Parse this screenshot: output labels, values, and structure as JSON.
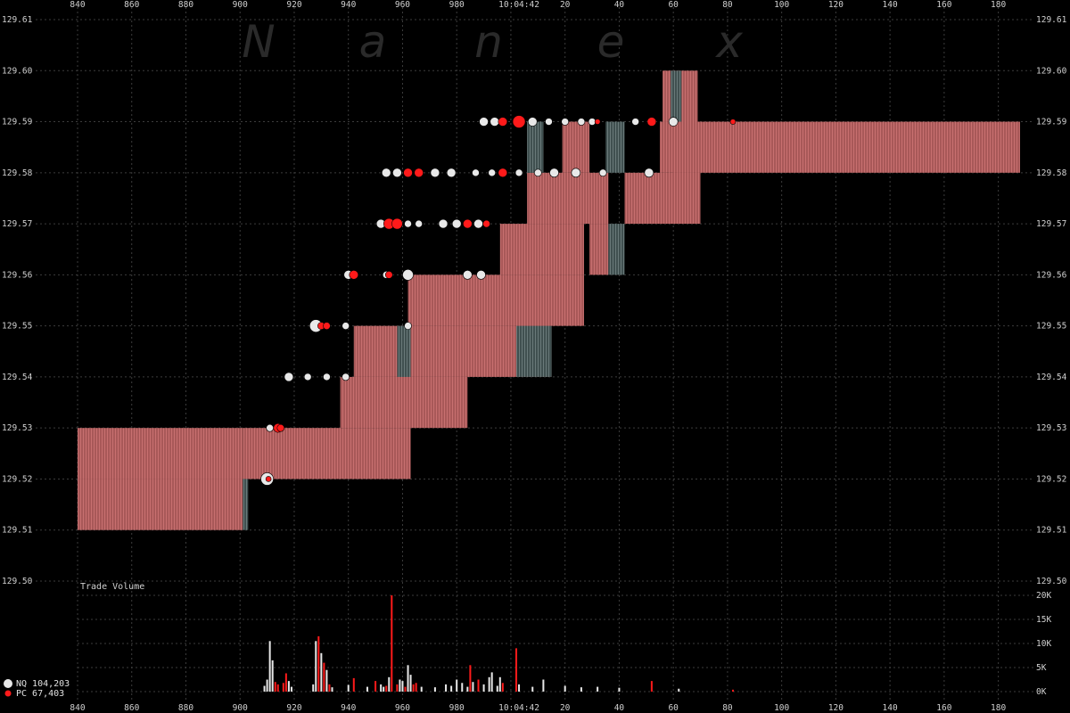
{
  "chart_data": {
    "type": "scatter",
    "watermark": [
      "N",
      "a",
      "n",
      "e",
      "x"
    ],
    "center_time_label": "10:04:42",
    "x_tick_labels": [
      "840",
      "860",
      "880",
      "900",
      "920",
      "940",
      "960",
      "980",
      "20",
      "40",
      "60",
      "80",
      "100",
      "120",
      "140",
      "160",
      "180"
    ],
    "y_tick_labels": [
      "129.61",
      "129.60",
      "129.59",
      "129.58",
      "129.57",
      "129.56",
      "129.55",
      "129.54",
      "129.53",
      "129.52",
      "129.51",
      "129.50"
    ],
    "ylim": [
      129.5,
      129.61
    ],
    "volume_label": "Trade Volume",
    "volume_tick_labels": [
      "20K",
      "15K",
      "10K",
      "5K",
      "0K"
    ],
    "volume_ylim": [
      0,
      20000
    ],
    "colors": {
      "background": "#000000",
      "band": "#a85858",
      "band_stripe": "#c06a6a",
      "band_dark": "#506060",
      "nq": "#e8e8e8",
      "pc": "#ff1a1a",
      "grid": "#3c3c3c"
    },
    "series": [
      {
        "name": "NQ",
        "total": "104,203",
        "color": "#e8e8e8"
      },
      {
        "name": "PC",
        "total": "67,403",
        "color": "#ff1a1a"
      }
    ],
    "quote_bands": [
      {
        "t0": 840,
        "t1": 901,
        "lo": 129.51,
        "hi": 129.52
      },
      {
        "t0": 840,
        "t1": 901,
        "lo": 129.52,
        "hi": 129.53
      },
      {
        "t0": 901,
        "t1": 963,
        "lo": 129.52,
        "hi": 129.53
      },
      {
        "t0": 937,
        "t1": 984,
        "lo": 129.53,
        "hi": 129.54
      },
      {
        "t0": 942,
        "t1": 1015,
        "lo": 129.54,
        "hi": 129.55
      },
      {
        "t0": 962,
        "t1": 1027,
        "lo": 129.55,
        "hi": 129.56
      },
      {
        "t0": 996,
        "t1": 1027,
        "lo": 129.56,
        "hi": 129.57
      },
      {
        "t0": 1029,
        "t1": 1036,
        "lo": 129.56,
        "hi": 129.57
      },
      {
        "t0": 1006,
        "t1": 1036,
        "lo": 129.57,
        "hi": 129.58
      },
      {
        "t0": 1042,
        "t1": 1070,
        "lo": 129.57,
        "hi": 129.58
      },
      {
        "t0": 1019,
        "t1": 1029,
        "lo": 129.58,
        "hi": 129.59
      },
      {
        "t0": 1055,
        "t1": 1070,
        "lo": 129.58,
        "hi": 129.59
      },
      {
        "t0": 1060,
        "t1": 1188,
        "lo": 129.58,
        "hi": 129.59
      },
      {
        "t0": 1056,
        "t1": 1069,
        "lo": 129.59,
        "hi": 129.6
      }
    ],
    "dark_bands": [
      {
        "t0": 901,
        "t1": 903,
        "lo": 129.51,
        "hi": 129.52
      },
      {
        "t0": 958,
        "t1": 963,
        "lo": 129.54,
        "hi": 129.55
      },
      {
        "t0": 1002,
        "t1": 1015,
        "lo": 129.54,
        "hi": 129.55
      },
      {
        "t0": 1036,
        "t1": 1042,
        "lo": 129.56,
        "hi": 129.57
      },
      {
        "t0": 1035,
        "t1": 1042,
        "lo": 129.58,
        "hi": 129.59
      },
      {
        "t0": 1006,
        "t1": 1012,
        "lo": 129.58,
        "hi": 129.59
      },
      {
        "t0": 1059,
        "t1": 1063,
        "lo": 129.59,
        "hi": 129.6
      }
    ],
    "trades": [
      {
        "t": 910,
        "p": 129.52,
        "s": "NQ",
        "r": 7
      },
      {
        "t": 910.5,
        "p": 129.52,
        "s": "PC",
        "r": 3
      },
      {
        "t": 911,
        "p": 129.53,
        "s": "NQ",
        "r": 4
      },
      {
        "t": 914,
        "p": 129.53,
        "s": "PC",
        "r": 5
      },
      {
        "t": 915,
        "p": 129.53,
        "s": "PC",
        "r": 4
      },
      {
        "t": 918,
        "p": 129.54,
        "s": "NQ",
        "r": 5
      },
      {
        "t": 925,
        "p": 129.54,
        "s": "NQ",
        "r": 4
      },
      {
        "t": 932,
        "p": 129.54,
        "s": "NQ",
        "r": 4
      },
      {
        "t": 939,
        "p": 129.54,
        "s": "NQ",
        "r": 4
      },
      {
        "t": 928,
        "p": 129.55,
        "s": "NQ",
        "r": 7
      },
      {
        "t": 930,
        "p": 129.55,
        "s": "PC",
        "r": 4
      },
      {
        "t": 932,
        "p": 129.55,
        "s": "PC",
        "r": 4
      },
      {
        "t": 939,
        "p": 129.55,
        "s": "NQ",
        "r": 4
      },
      {
        "t": 962,
        "p": 129.55,
        "s": "NQ",
        "r": 4
      },
      {
        "t": 940,
        "p": 129.56,
        "s": "NQ",
        "r": 5
      },
      {
        "t": 942,
        "p": 129.56,
        "s": "PC",
        "r": 5
      },
      {
        "t": 954,
        "p": 129.56,
        "s": "NQ",
        "r": 4
      },
      {
        "t": 955,
        "p": 129.56,
        "s": "PC",
        "r": 4
      },
      {
        "t": 962,
        "p": 129.56,
        "s": "NQ",
        "r": 6
      },
      {
        "t": 984,
        "p": 129.56,
        "s": "NQ",
        "r": 5
      },
      {
        "t": 989,
        "p": 129.56,
        "s": "NQ",
        "r": 5
      },
      {
        "t": 952,
        "p": 129.57,
        "s": "NQ",
        "r": 5
      },
      {
        "t": 955,
        "p": 129.57,
        "s": "PC",
        "r": 6
      },
      {
        "t": 958,
        "p": 129.57,
        "s": "PC",
        "r": 6
      },
      {
        "t": 962,
        "p": 129.57,
        "s": "NQ",
        "r": 4
      },
      {
        "t": 966,
        "p": 129.57,
        "s": "NQ",
        "r": 4
      },
      {
        "t": 975,
        "p": 129.57,
        "s": "NQ",
        "r": 5
      },
      {
        "t": 980,
        "p": 129.57,
        "s": "NQ",
        "r": 5
      },
      {
        "t": 984,
        "p": 129.57,
        "s": "PC",
        "r": 5
      },
      {
        "t": 988,
        "p": 129.57,
        "s": "NQ",
        "r": 5
      },
      {
        "t": 991,
        "p": 129.57,
        "s": "PC",
        "r": 4
      },
      {
        "t": 954,
        "p": 129.58,
        "s": "NQ",
        "r": 5
      },
      {
        "t": 958,
        "p": 129.58,
        "s": "NQ",
        "r": 5
      },
      {
        "t": 962,
        "p": 129.58,
        "s": "PC",
        "r": 5
      },
      {
        "t": 966,
        "p": 129.58,
        "s": "PC",
        "r": 5
      },
      {
        "t": 972,
        "p": 129.58,
        "s": "NQ",
        "r": 5
      },
      {
        "t": 978,
        "p": 129.58,
        "s": "NQ",
        "r": 5
      },
      {
        "t": 987,
        "p": 129.58,
        "s": "NQ",
        "r": 4
      },
      {
        "t": 993,
        "p": 129.58,
        "s": "NQ",
        "r": 4
      },
      {
        "t": 997,
        "p": 129.58,
        "s": "PC",
        "r": 5
      },
      {
        "t": 1003,
        "p": 129.58,
        "s": "NQ",
        "r": 4
      },
      {
        "t": 1010,
        "p": 129.58,
        "s": "NQ",
        "r": 4
      },
      {
        "t": 1016,
        "p": 129.58,
        "s": "NQ",
        "r": 5
      },
      {
        "t": 1024,
        "p": 129.58,
        "s": "NQ",
        "r": 5
      },
      {
        "t": 1034,
        "p": 129.58,
        "s": "NQ",
        "r": 4
      },
      {
        "t": 1051,
        "p": 129.58,
        "s": "NQ",
        "r": 5
      },
      {
        "t": 990,
        "p": 129.59,
        "s": "NQ",
        "r": 5
      },
      {
        "t": 994,
        "p": 129.59,
        "s": "NQ",
        "r": 5
      },
      {
        "t": 997,
        "p": 129.59,
        "s": "PC",
        "r": 5
      },
      {
        "t": 1003,
        "p": 129.59,
        "s": "PC",
        "r": 7
      },
      {
        "t": 1008,
        "p": 129.59,
        "s": "NQ",
        "r": 5
      },
      {
        "t": 1014,
        "p": 129.59,
        "s": "NQ",
        "r": 4
      },
      {
        "t": 1020,
        "p": 129.59,
        "s": "NQ",
        "r": 4
      },
      {
        "t": 1026,
        "p": 129.59,
        "s": "NQ",
        "r": 4
      },
      {
        "t": 1030,
        "p": 129.59,
        "s": "NQ",
        "r": 4
      },
      {
        "t": 1032,
        "p": 129.59,
        "s": "PC",
        "r": 3
      },
      {
        "t": 1046,
        "p": 129.59,
        "s": "NQ",
        "r": 4
      },
      {
        "t": 1052,
        "p": 129.59,
        "s": "PC",
        "r": 5
      },
      {
        "t": 1060,
        "p": 129.59,
        "s": "NQ",
        "r": 5
      },
      {
        "t": 1082,
        "p": 129.59,
        "s": "PC",
        "r": 3
      }
    ],
    "volume": [
      {
        "t": 909,
        "v": 1200,
        "s": "NQ"
      },
      {
        "t": 910,
        "v": 2500,
        "s": "NQ"
      },
      {
        "t": 911,
        "v": 10500,
        "s": "NQ"
      },
      {
        "t": 912,
        "v": 6500,
        "s": "NQ"
      },
      {
        "t": 913,
        "v": 2000,
        "s": "PC"
      },
      {
        "t": 914,
        "v": 1500,
        "s": "PC"
      },
      {
        "t": 916,
        "v": 1800,
        "s": "PC"
      },
      {
        "t": 917,
        "v": 3800,
        "s": "PC"
      },
      {
        "t": 918,
        "v": 2200,
        "s": "NQ"
      },
      {
        "t": 919,
        "v": 1000,
        "s": "NQ"
      },
      {
        "t": 927,
        "v": 1500,
        "s": "NQ"
      },
      {
        "t": 928,
        "v": 10500,
        "s": "NQ"
      },
      {
        "t": 929,
        "v": 11500,
        "s": "PC"
      },
      {
        "t": 930,
        "v": 8000,
        "s": "NQ"
      },
      {
        "t": 931,
        "v": 6000,
        "s": "PC"
      },
      {
        "t": 932,
        "v": 4500,
        "s": "NQ"
      },
      {
        "t": 933,
        "v": 1500,
        "s": "PC"
      },
      {
        "t": 934,
        "v": 900,
        "s": "NQ"
      },
      {
        "t": 940,
        "v": 1400,
        "s": "NQ"
      },
      {
        "t": 942,
        "v": 2800,
        "s": "PC"
      },
      {
        "t": 947,
        "v": 1000,
        "s": "NQ"
      },
      {
        "t": 950,
        "v": 2200,
        "s": "PC"
      },
      {
        "t": 952,
        "v": 1500,
        "s": "NQ"
      },
      {
        "t": 953,
        "v": 1000,
        "s": "NQ"
      },
      {
        "t": 954,
        "v": 1200,
        "s": "PC"
      },
      {
        "t": 955,
        "v": 3000,
        "s": "NQ"
      },
      {
        "t": 956,
        "v": 20000,
        "s": "PC"
      },
      {
        "t": 958,
        "v": 1500,
        "s": "PC"
      },
      {
        "t": 959,
        "v": 2500,
        "s": "NQ"
      },
      {
        "t": 960,
        "v": 2200,
        "s": "NQ"
      },
      {
        "t": 961,
        "v": 1000,
        "s": "PC"
      },
      {
        "t": 962,
        "v": 5500,
        "s": "NQ"
      },
      {
        "t": 963,
        "v": 3500,
        "s": "NQ"
      },
      {
        "t": 964,
        "v": 1500,
        "s": "PC"
      },
      {
        "t": 965,
        "v": 1800,
        "s": "PC"
      },
      {
        "t": 967,
        "v": 1000,
        "s": "NQ"
      },
      {
        "t": 972,
        "v": 900,
        "s": "NQ"
      },
      {
        "t": 976,
        "v": 1500,
        "s": "NQ"
      },
      {
        "t": 978,
        "v": 1200,
        "s": "NQ"
      },
      {
        "t": 980,
        "v": 2500,
        "s": "NQ"
      },
      {
        "t": 982,
        "v": 1800,
        "s": "NQ"
      },
      {
        "t": 984,
        "v": 1000,
        "s": "NQ"
      },
      {
        "t": 985,
        "v": 5500,
        "s": "PC"
      },
      {
        "t": 986,
        "v": 2000,
        "s": "NQ"
      },
      {
        "t": 988,
        "v": 2500,
        "s": "PC"
      },
      {
        "t": 990,
        "v": 1500,
        "s": "NQ"
      },
      {
        "t": 992,
        "v": 3000,
        "s": "NQ"
      },
      {
        "t": 993,
        "v": 4000,
        "s": "NQ"
      },
      {
        "t": 995,
        "v": 1200,
        "s": "NQ"
      },
      {
        "t": 996,
        "v": 3000,
        "s": "NQ"
      },
      {
        "t": 997,
        "v": 1800,
        "s": "PC"
      },
      {
        "t": 1002,
        "v": 9000,
        "s": "PC"
      },
      {
        "t": 1003,
        "v": 1500,
        "s": "NQ"
      },
      {
        "t": 1008,
        "v": 1000,
        "s": "NQ"
      },
      {
        "t": 1012,
        "v": 2500,
        "s": "NQ"
      },
      {
        "t": 1020,
        "v": 1200,
        "s": "NQ"
      },
      {
        "t": 1026,
        "v": 900,
        "s": "NQ"
      },
      {
        "t": 1032,
        "v": 1000,
        "s": "NQ"
      },
      {
        "t": 1040,
        "v": 800,
        "s": "NQ"
      },
      {
        "t": 1052,
        "v": 2200,
        "s": "PC"
      },
      {
        "t": 1062,
        "v": 600,
        "s": "NQ"
      },
      {
        "t": 1082,
        "v": 400,
        "s": "PC"
      }
    ]
  }
}
